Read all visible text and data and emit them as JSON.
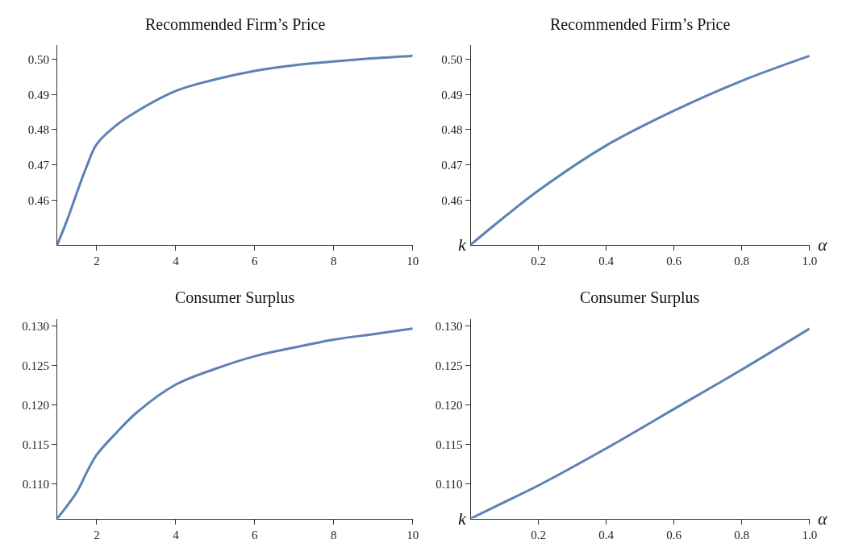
{
  "chart_data": [
    {
      "type": "line",
      "title": "Recommended Firm’s Price",
      "x": [
        1,
        1.25,
        1.5,
        1.75,
        2,
        2.5,
        3,
        4,
        5,
        6,
        7,
        8,
        9,
        10
      ],
      "series": [
        {
          "color": "#5e81b5",
          "values": [
            0.4473,
            0.4543,
            0.4622,
            0.4697,
            0.4759,
            0.4813,
            0.4851,
            0.491,
            0.4943,
            0.4967,
            0.4983,
            0.4994,
            0.5003,
            0.501
          ]
        }
      ],
      "xlim": [
        1,
        10
      ],
      "ylim": [
        0.4473,
        0.504
      ],
      "xticks": [
        2,
        4,
        6,
        8,
        10
      ],
      "yticks": [
        0.46,
        0.47,
        0.48,
        0.49,
        {
          "value": 0.5,
          "label": "0.50"
        }
      ],
      "line_style": "solid",
      "marker": "none"
    },
    {
      "type": "line",
      "title": "Recommended Firm’s Price",
      "xlabel": "α",
      "ylabel": "k",
      "x": [
        0,
        0.1,
        0.2,
        0.4,
        0.6,
        0.8,
        1.0
      ],
      "series": [
        {
          "color": "#5e81b5",
          "values": [
            0.4473,
            0.4552,
            0.4627,
            0.4755,
            0.4854,
            0.4939,
            0.501
          ]
        }
      ],
      "xlim": [
        0,
        1.0
      ],
      "ylim": [
        0.4473,
        0.504
      ],
      "xticks": [
        0.2,
        0.4,
        0.6,
        0.8,
        {
          "value": 1.0,
          "label": "1.0"
        }
      ],
      "yticks": [
        0.46,
        0.47,
        0.48,
        0.49,
        {
          "value": 0.5,
          "label": "0.50"
        }
      ],
      "line_style": "solid",
      "marker": "none"
    },
    {
      "type": "line",
      "title": "Consumer Surplus",
      "x": [
        1,
        1.5,
        1.75,
        2,
        2.5,
        3,
        4,
        5,
        6,
        7,
        8,
        9,
        10
      ],
      "series": [
        {
          "color": "#5e81b5",
          "values": [
            0.1056,
            0.109,
            0.1115,
            0.1137,
            0.1165,
            0.119,
            0.1226,
            0.1246,
            0.1262,
            0.1273,
            0.1283,
            0.129,
            0.1297
          ]
        }
      ],
      "xlim": [
        1,
        10
      ],
      "ylim": [
        0.1056,
        0.1309
      ],
      "xticks": [
        2,
        4,
        6,
        8,
        10
      ],
      "yticks": [
        {
          "value": 0.11,
          "label": "0.110"
        },
        0.115,
        {
          "value": 0.12,
          "label": "0.120"
        },
        0.125,
        {
          "value": 0.13,
          "label": "0.130"
        }
      ],
      "line_style": "solid",
      "marker": "none"
    },
    {
      "type": "line",
      "title": "Consumer Surplus",
      "xlabel": "α",
      "ylabel": "k",
      "x": [
        0,
        0.1,
        0.2,
        0.4,
        0.6,
        0.8,
        1.0
      ],
      "series": [
        {
          "color": "#5e81b5",
          "values": [
            0.1056,
            0.1077,
            0.1098,
            0.1145,
            0.1195,
            0.1245,
            0.1297
          ]
        }
      ],
      "xlim": [
        0,
        1.0
      ],
      "ylim": [
        0.1056,
        0.1309
      ],
      "xticks": [
        0.2,
        0.4,
        0.6,
        0.8,
        {
          "value": 1.0,
          "label": "1.0"
        }
      ],
      "yticks": [
        {
          "value": 0.11,
          "label": "0.110"
        },
        0.115,
        {
          "value": 0.12,
          "label": "0.120"
        },
        0.125,
        {
          "value": 0.13,
          "label": "0.130"
        }
      ],
      "line_style": "solid",
      "marker": "none"
    }
  ]
}
